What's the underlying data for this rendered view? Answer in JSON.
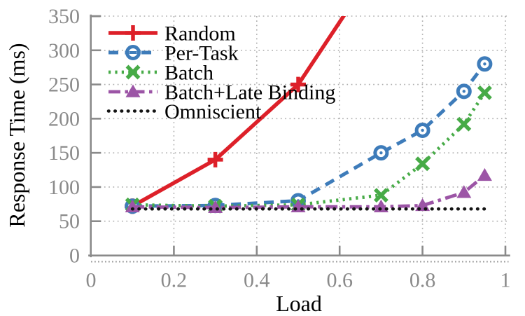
{
  "figure": {
    "background": "#ffffff",
    "tick_label_color": "#8a8a8a",
    "axis_color": "#8a8a8a",
    "grid_color": "#adadad",
    "text_color": "#000000"
  },
  "chart_data": {
    "type": "line",
    "title": "",
    "xlabel": "Load",
    "ylabel": "Response Time (ms)",
    "xlim": [
      0,
      1
    ],
    "ylim": [
      0,
      350
    ],
    "grid": "dotted",
    "legend_position": "upper-left-inside",
    "xticks": {
      "values": [
        0,
        0.2,
        0.4,
        0.6,
        0.8,
        1
      ],
      "labels": [
        "0",
        "0.2",
        "0.4",
        "0.6",
        "0.8",
        "1"
      ]
    },
    "yticks": {
      "values": [
        0,
        50,
        100,
        150,
        200,
        250,
        300,
        350
      ],
      "labels": [
        "0",
        "50",
        "100",
        "150",
        "200",
        "250",
        "300",
        "350"
      ]
    },
    "series": [
      {
        "name": "Random",
        "color": "#dd2029",
        "linestyle": "solid",
        "marker": "plus",
        "points": [
          [
            0.1,
            72
          ],
          [
            0.3,
            140
          ],
          [
            0.5,
            250
          ]
        ],
        "offchart_continuation": [
          0.615,
          355
        ],
        "note": "line rises off the top of the chart near load 0.61"
      },
      {
        "name": "Per-Task",
        "color": "#3e7cba",
        "linestyle": "dashed",
        "marker": "open-circle",
        "points": [
          [
            0.1,
            72
          ],
          [
            0.3,
            73
          ],
          [
            0.5,
            80
          ],
          [
            0.7,
            150
          ],
          [
            0.8,
            183
          ],
          [
            0.9,
            240
          ],
          [
            0.95,
            280
          ]
        ]
      },
      {
        "name": "Batch",
        "color": "#47ab47",
        "linestyle": "dotted",
        "marker": "x",
        "points": [
          [
            0.1,
            74
          ],
          [
            0.3,
            72
          ],
          [
            0.5,
            74
          ],
          [
            0.7,
            88
          ],
          [
            0.8,
            134
          ],
          [
            0.9,
            192
          ],
          [
            0.95,
            238
          ]
        ]
      },
      {
        "name": "Batch+Late Binding",
        "color": "#9c55a6",
        "linestyle": "dash-dot",
        "marker": "triangle",
        "points": [
          [
            0.1,
            71
          ],
          [
            0.3,
            70
          ],
          [
            0.5,
            71
          ],
          [
            0.7,
            71
          ],
          [
            0.8,
            73
          ],
          [
            0.9,
            92
          ],
          [
            0.95,
            117
          ]
        ]
      },
      {
        "name": "Omniscient",
        "color": "#141414",
        "linestyle": "dotted-round",
        "marker": "none",
        "points": [
          [
            0.1,
            68
          ],
          [
            0.95,
            68
          ]
        ]
      }
    ]
  }
}
